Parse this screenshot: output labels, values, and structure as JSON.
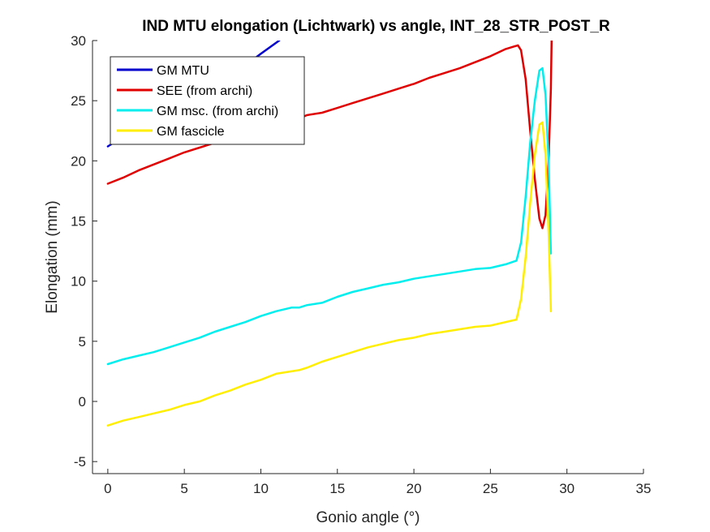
{
  "chart_data": {
    "type": "line",
    "title": "IND MTU elongation (Lichtwark) vs angle, INT_28_STR_POST_R",
    "xlabel": "Gonio angle (°)",
    "ylabel": "Elongation (mm)",
    "xlim": [
      -1,
      35
    ],
    "ylim": [
      -6,
      30
    ],
    "xticks": [
      0,
      5,
      10,
      15,
      20,
      25,
      30,
      35
    ],
    "yticks": [
      -5,
      0,
      5,
      10,
      15,
      20,
      25,
      30
    ],
    "grid": false,
    "legend_position": "top-left",
    "series": [
      {
        "name": "GM MTU",
        "color": "#0000cc",
        "x": [
          0,
          2,
          4,
          6,
          8,
          10,
          11.2
        ],
        "y": [
          21.2,
          22.8,
          24.3,
          25.8,
          27.0,
          28.9,
          30.0
        ]
      },
      {
        "name": "SEE (from archi)",
        "color": "#e00000",
        "x": [
          0,
          1,
          2,
          3,
          4,
          5,
          6,
          7,
          8,
          9,
          10,
          11,
          12,
          12.5,
          13,
          14,
          15,
          16,
          17,
          18,
          19,
          20,
          21,
          22,
          23,
          24,
          25,
          26,
          26.8,
          27.0,
          27.3,
          27.6,
          27.9,
          28.2,
          28.4,
          28.6,
          28.8,
          28.95,
          29.0
        ],
        "y": [
          18.1,
          18.6,
          19.2,
          19.7,
          20.2,
          20.7,
          21.1,
          21.5,
          21.9,
          22.3,
          22.7,
          23.1,
          23.4,
          23.5,
          23.8,
          24.0,
          24.4,
          24.8,
          25.2,
          25.6,
          26.0,
          26.4,
          26.9,
          27.3,
          27.7,
          28.2,
          28.7,
          29.3,
          29.6,
          29.2,
          26.8,
          22.5,
          18.5,
          15.2,
          14.4,
          15.5,
          20.0,
          26.0,
          30.0
        ]
      },
      {
        "name": "GM msc. (from archi)",
        "color": "#00eeee",
        "x": [
          0,
          1,
          2,
          3,
          4,
          5,
          6,
          7,
          8,
          9,
          10,
          11,
          12,
          12.5,
          13,
          14,
          15,
          16,
          17,
          18,
          19,
          20,
          21,
          22,
          23,
          24,
          25,
          26,
          26.7,
          27.0,
          27.3,
          27.6,
          27.9,
          28.2,
          28.4,
          28.6,
          28.8,
          28.95
        ],
        "y": [
          3.1,
          3.5,
          3.8,
          4.1,
          4.5,
          4.9,
          5.3,
          5.8,
          6.2,
          6.6,
          7.1,
          7.5,
          7.8,
          7.8,
          8.0,
          8.2,
          8.7,
          9.1,
          9.4,
          9.7,
          9.9,
          10.2,
          10.4,
          10.6,
          10.8,
          11.0,
          11.1,
          11.4,
          11.7,
          13.2,
          17.0,
          21.5,
          25.0,
          27.5,
          27.7,
          25.5,
          20.0,
          12.3
        ]
      },
      {
        "name": "GM fascicle",
        "color": "#ffee00",
        "x": [
          0,
          1,
          2,
          3,
          4,
          5,
          6,
          7,
          8,
          9,
          10,
          11,
          12,
          12.5,
          13,
          14,
          15,
          16,
          17,
          18,
          19,
          20,
          21,
          22,
          23,
          24,
          25,
          26,
          26.7,
          27.0,
          27.3,
          27.6,
          27.9,
          28.2,
          28.4,
          28.6,
          28.8,
          28.95
        ],
        "y": [
          -2.0,
          -1.6,
          -1.3,
          -1.0,
          -0.7,
          -0.3,
          0.0,
          0.5,
          0.9,
          1.4,
          1.8,
          2.3,
          2.5,
          2.6,
          2.8,
          3.3,
          3.7,
          4.1,
          4.5,
          4.8,
          5.1,
          5.3,
          5.6,
          5.8,
          6.0,
          6.2,
          6.3,
          6.6,
          6.8,
          8.5,
          12.0,
          16.5,
          20.5,
          23.0,
          23.2,
          20.5,
          14.0,
          7.5
        ]
      }
    ]
  }
}
